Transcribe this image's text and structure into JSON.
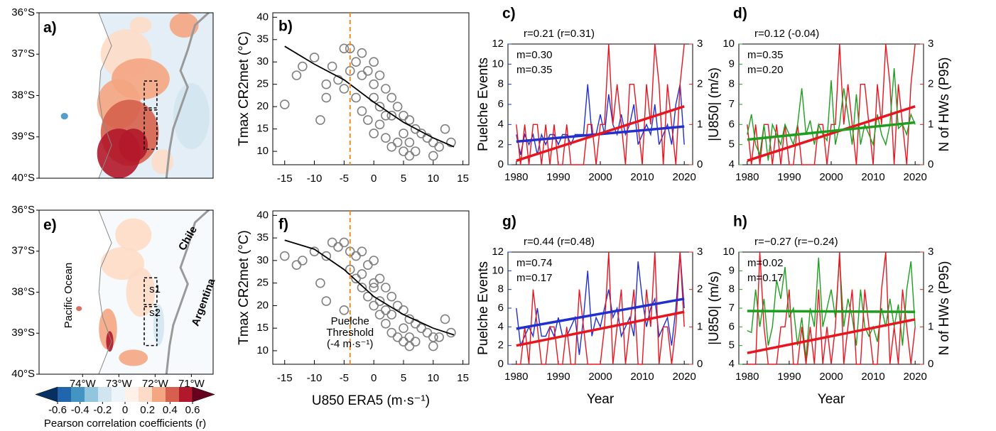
{
  "chart_data": [
    {
      "type": "map",
      "title": "a)",
      "xlim": [
        -75.2,
        -70.4
      ],
      "ylim": [
        -40,
        -36
      ],
      "yticks": [
        {
          "value": -36,
          "label": "36°S"
        },
        {
          "value": -37,
          "label": "37°S"
        },
        {
          "value": -38,
          "label": "38°S"
        },
        {
          "value": -39,
          "label": "39°S"
        },
        {
          "value": -40,
          "label": "40°S"
        }
      ],
      "xticks": [],
      "annotations": []
    },
    {
      "type": "map",
      "title": "e)",
      "xlim": [
        -75.2,
        -70.4
      ],
      "ylim": [
        -40,
        -36
      ],
      "yticks": [
        {
          "value": -36,
          "label": "36°S"
        },
        {
          "value": -37,
          "label": "37°S"
        },
        {
          "value": -38,
          "label": "38°S"
        },
        {
          "value": -39,
          "label": "39°S"
        },
        {
          "value": -40,
          "label": "40°S"
        }
      ],
      "xticks": [
        {
          "value": -74,
          "label": "74°W"
        },
        {
          "value": -73,
          "label": "73°W"
        },
        {
          "value": -72,
          "label": "72°W"
        },
        {
          "value": -71,
          "label": "71°W"
        }
      ],
      "annotations": [
        "Pacific Ocean",
        "Chile",
        "Argentina",
        "s1",
        "s2"
      ]
    },
    {
      "type": "colorbar",
      "xlabel": "Pearson correlation coefficients (r)",
      "xlim": [
        -0.6,
        0.6
      ],
      "xticks": [
        -0.6,
        -0.4,
        -0.2,
        0,
        0.2,
        0.4,
        0.6
      ],
      "colors": [
        "#053061",
        "#2166ac",
        "#4393c3",
        "#92c5de",
        "#d1e5f0",
        "#eef5fa",
        "#fdf1ea",
        "#fddbc7",
        "#f4a582",
        "#d6604d",
        "#b2182b",
        "#67001f"
      ]
    },
    {
      "type": "scatter",
      "title": "b)",
      "ylabel": "Tmax CR2met (°C)",
      "xlim": [
        -17,
        16
      ],
      "ylim": [
        7,
        41
      ],
      "xticks": [
        -15,
        -10,
        -5,
        0,
        5,
        10,
        15
      ],
      "yticks": [
        10,
        15,
        20,
        25,
        30,
        35,
        40
      ],
      "threshold": -4,
      "point_color": "#808080",
      "fit_color": "#000000",
      "threshold_color": "#f08c1e",
      "points": {
        "x": [
          -15,
          -13,
          -12,
          -10,
          -9,
          -8,
          -7,
          -6,
          -5,
          -4,
          -3,
          -3,
          -2,
          -2,
          -1,
          -1,
          0,
          0,
          0,
          1,
          1,
          2,
          2,
          3,
          3,
          4,
          4,
          5,
          5,
          6,
          6,
          7,
          7,
          8,
          9,
          10,
          11,
          12,
          13,
          -5,
          -2,
          1,
          3,
          5,
          -8,
          -4,
          0,
          2,
          6,
          10
        ],
        "y": [
          20.5,
          27,
          29,
          31,
          17,
          25,
          29,
          26,
          33,
          33,
          30,
          22,
          32,
          19,
          28,
          17,
          30,
          22,
          14,
          27,
          16,
          24,
          13,
          22,
          11,
          20,
          12,
          18,
          10,
          17,
          9,
          15,
          10,
          14,
          13,
          12,
          11,
          15,
          12,
          24,
          27,
          20,
          18,
          14,
          22,
          28,
          25,
          18,
          12,
          9
        ]
      },
      "fit": {
        "x": [
          -15,
          -10,
          -5,
          0,
          5,
          10,
          13.5
        ],
        "y": [
          33.5,
          29.5,
          26,
          21,
          16.5,
          13,
          11
        ]
      }
    },
    {
      "type": "scatter",
      "title": "f)",
      "ylabel": "Tmax CR2met (°C)",
      "xlabel": "U850 ERA5 (m·s⁻¹)",
      "xlim": [
        -17,
        16
      ],
      "ylim": [
        7,
        41
      ],
      "xticks": [
        -15,
        -10,
        -5,
        0,
        5,
        10,
        15
      ],
      "yticks": [
        10,
        15,
        20,
        25,
        30,
        35,
        40
      ],
      "threshold": -4,
      "point_color": "#808080",
      "fit_color": "#000000",
      "threshold_color": "#f08c1e",
      "annotation": [
        "Puelche",
        "Threshold",
        "(-4 m·s⁻¹)"
      ],
      "points": {
        "x": [
          -15,
          -13,
          -12,
          -10,
          -9,
          -8,
          -7,
          -6,
          -5,
          -4,
          -3,
          -3,
          -2,
          -2,
          -1,
          -1,
          0,
          0,
          0,
          1,
          1,
          2,
          2,
          3,
          3,
          4,
          4,
          5,
          5,
          6,
          6,
          7,
          7,
          8,
          9,
          10,
          11,
          12,
          13,
          -5,
          -2,
          1,
          3,
          5,
          -8,
          -4,
          0,
          2,
          6,
          10
        ],
        "y": [
          31,
          29,
          30,
          32,
          25,
          31,
          34,
          33,
          34,
          32,
          31,
          26,
          32,
          24,
          29,
          22,
          30,
          24,
          20,
          26,
          18,
          24,
          16,
          22,
          14,
          20,
          13,
          19,
          12,
          17,
          11,
          16,
          12,
          15,
          14,
          13,
          13,
          17,
          14,
          19,
          27,
          21,
          18,
          15,
          21,
          28,
          25,
          19,
          13,
          11
        ]
      },
      "fit": {
        "x": [
          -15,
          -10,
          -5,
          0,
          5,
          10,
          13.5
        ],
        "y": [
          34.5,
          32.5,
          28,
          22,
          18,
          15,
          13.5
        ]
      }
    },
    {
      "type": "line",
      "title": "c)",
      "stat": "r=0.21 (r=0.31)",
      "ylabel": "Puelche Events",
      "xlim": [
        1978,
        2022
      ],
      "xticks": [
        1980,
        1990,
        2000,
        2010,
        2020
      ],
      "ylim": [
        0,
        12
      ],
      "yticks": [
        0,
        2,
        4,
        6,
        8,
        10,
        12
      ],
      "y2lim": [
        0,
        3
      ],
      "y2ticks": [
        0,
        1,
        2,
        3
      ],
      "x": [
        1980,
        1981,
        1982,
        1983,
        1984,
        1985,
        1986,
        1987,
        1988,
        1989,
        1990,
        1991,
        1992,
        1993,
        1994,
        1995,
        1996,
        1997,
        1998,
        1999,
        2000,
        2001,
        2002,
        2003,
        2004,
        2005,
        2006,
        2007,
        2008,
        2009,
        2010,
        2011,
        2012,
        2013,
        2014,
        2015,
        2016,
        2017,
        2018,
        2019,
        2020
      ],
      "series": [
        {
          "color": "#1f2fd0",
          "slope_label": "m=0.30",
          "trend": [
            2.3,
            3.8
          ],
          "values": [
            3,
            1,
            3,
            2,
            3,
            1,
            3,
            2,
            3,
            3,
            2,
            3,
            3,
            2,
            3,
            3,
            3,
            8,
            3,
            3,
            5,
            3,
            7,
            4,
            3,
            5,
            3,
            4,
            6,
            2,
            3,
            4,
            3,
            6,
            2,
            3,
            4,
            2,
            6,
            8,
            2
          ]
        },
        {
          "color": "#e8141e",
          "axis": "y2",
          "slope_label": "m=0.35",
          "trend": [
            0.1,
            1.45
          ],
          "values": [
            1,
            0,
            1,
            0,
            1,
            1,
            0,
            1,
            0,
            1,
            0,
            0,
            1,
            0,
            0,
            0,
            0,
            1,
            1,
            0,
            1,
            1,
            3,
            1,
            2,
            1,
            0,
            2,
            2,
            1,
            0,
            2,
            1,
            3,
            2,
            0,
            2,
            1,
            0,
            2,
            3
          ]
        }
      ]
    },
    {
      "type": "line",
      "title": "d)",
      "stat": "r=0.12 (-0.04)",
      "ylabel": "|U850| (m/s)",
      "y2label": "N of HWs (P95)",
      "xlim": [
        1978,
        2022
      ],
      "xticks": [
        1980,
        1990,
        2000,
        2010,
        2020
      ],
      "ylim": [
        4,
        10
      ],
      "yticks": [
        4,
        5,
        6,
        7,
        8,
        9,
        10
      ],
      "y2lim": [
        0,
        3
      ],
      "y2ticks": [
        0,
        1,
        2,
        3
      ],
      "x": [
        1980,
        1981,
        1982,
        1983,
        1984,
        1985,
        1986,
        1987,
        1988,
        1989,
        1990,
        1991,
        1992,
        1993,
        1994,
        1995,
        1996,
        1997,
        1998,
        1999,
        2000,
        2001,
        2002,
        2003,
        2004,
        2005,
        2006,
        2007,
        2008,
        2009,
        2010,
        2011,
        2012,
        2013,
        2014,
        2015,
        2016,
        2017,
        2018,
        2019,
        2020
      ],
      "series": [
        {
          "color": "#e8141e",
          "axis": "y2",
          "slope_label": "m=0.35",
          "trend": [
            0.1,
            1.45
          ],
          "values": [
            1,
            0,
            1,
            0,
            1,
            1,
            0,
            1,
            0,
            1,
            0,
            0,
            1,
            0,
            0,
            0,
            0,
            1,
            1,
            0,
            1,
            1,
            3,
            1,
            2,
            1,
            0,
            2,
            2,
            1,
            0,
            2,
            1,
            3,
            2,
            0,
            2,
            1,
            0,
            2,
            3
          ]
        },
        {
          "color": "#1e9e1e",
          "slope_label": "m=0.20",
          "trend": [
            5.25,
            6.1
          ],
          "values": [
            5.5,
            6.5,
            5,
            4.5,
            6,
            4.2,
            6,
            5.5,
            5,
            6,
            5.5,
            5,
            6,
            7.8,
            5.5,
            6.2,
            5,
            6,
            5.5,
            5.2,
            8.2,
            5,
            6,
            7.8,
            6.5,
            5,
            7.5,
            5,
            6,
            5.5,
            5,
            6.5,
            5.5,
            5,
            6,
            8.8,
            5.8,
            6,
            5.5,
            6.5,
            6
          ]
        }
      ]
    },
    {
      "type": "line",
      "title": "g)",
      "stat": "r=0.44 (r=0.48)",
      "ylabel": "Puelche Events",
      "xlabel": "Year",
      "xlim": [
        1978,
        2022
      ],
      "xticks": [
        1980,
        1990,
        2000,
        2010,
        2020
      ],
      "ylim": [
        0,
        12
      ],
      "yticks": [
        0,
        2,
        4,
        6,
        8,
        10,
        12
      ],
      "y2lim": [
        0,
        3
      ],
      "y2ticks": [
        0,
        1,
        2,
        3
      ],
      "x": [
        1980,
        1981,
        1982,
        1983,
        1984,
        1985,
        1986,
        1987,
        1988,
        1989,
        1990,
        1991,
        1992,
        1993,
        1994,
        1995,
        1996,
        1997,
        1998,
        1999,
        2000,
        2001,
        2002,
        2003,
        2004,
        2005,
        2006,
        2007,
        2008,
        2009,
        2010,
        2011,
        2012,
        2013,
        2014,
        2015,
        2016,
        2017,
        2018,
        2019,
        2020
      ],
      "series": [
        {
          "color": "#1f2fd0",
          "slope_label": "m=0.74",
          "trend": [
            3.8,
            7.0
          ],
          "values": [
            6,
            2,
            3,
            4,
            3,
            6,
            3,
            3,
            4,
            3,
            5,
            3,
            3,
            4,
            5,
            1,
            5,
            10,
            3,
            5,
            4,
            6,
            8,
            5,
            6,
            3,
            4,
            5,
            3,
            11,
            7,
            4,
            6,
            7,
            3,
            4,
            5,
            2,
            6,
            12,
            6
          ]
        },
        {
          "color": "#e8141e",
          "axis": "y2",
          "slope_label": "m=0.17",
          "trend": [
            0.5,
            1.4
          ],
          "values": [
            0,
            0,
            1,
            0,
            2,
            1,
            0,
            0,
            1,
            1,
            0,
            0,
            1,
            0,
            0,
            2,
            1,
            0,
            0,
            0,
            0,
            1,
            3,
            0,
            1,
            2,
            0,
            1,
            2,
            0,
            0,
            2,
            1,
            3,
            0,
            1,
            1,
            0,
            1,
            3,
            1
          ]
        }
      ]
    },
    {
      "type": "line",
      "title": "h)",
      "stat": "r=−0.27 (r=−0.24)",
      "ylabel": "|U850| (m/s)",
      "y2label": "N of HWs (P95)",
      "xlabel": "Year",
      "xlim": [
        1978,
        2022
      ],
      "xticks": [
        1980,
        1990,
        2000,
        2010,
        2020
      ],
      "ylim": [
        4,
        10
      ],
      "yticks": [
        4,
        5,
        6,
        7,
        8,
        9,
        10
      ],
      "y2lim": [
        0,
        3
      ],
      "y2ticks": [
        0,
        1,
        2,
        3
      ],
      "x": [
        1980,
        1981,
        1982,
        1983,
        1984,
        1985,
        1986,
        1987,
        1988,
        1989,
        1990,
        1991,
        1992,
        1993,
        1994,
        1995,
        1996,
        1997,
        1998,
        1999,
        2000,
        2001,
        2002,
        2003,
        2004,
        2005,
        2006,
        2007,
        2008,
        2009,
        2010,
        2011,
        2012,
        2013,
        2014,
        2015,
        2016,
        2017,
        2018,
        2019,
        2020
      ],
      "series": [
        {
          "color": "#1e9e1e",
          "slope_label": "m=0.02",
          "trend": [
            6.85,
            6.8
          ],
          "values": [
            5.8,
            5.7,
            8,
            6,
            7.5,
            5,
            6,
            8.5,
            7.5,
            9.2,
            6.5,
            7,
            5,
            6.5,
            4.3,
            7,
            6,
            9.7,
            6,
            7,
            8,
            6.5,
            9.7,
            6,
            7.5,
            6.5,
            5,
            8,
            6,
            5.5,
            6,
            5.2,
            7,
            6,
            7.5,
            6,
            7.2,
            5,
            8,
            9.5,
            6
          ]
        },
        {
          "color": "#e8141e",
          "axis": "y2",
          "slope_label": "m=0.17",
          "trend": [
            0.3,
            1.2
          ],
          "values": [
            0,
            0,
            0,
            3,
            1,
            0,
            0,
            0,
            1,
            1,
            2,
            0,
            0,
            1,
            0,
            1,
            0,
            2,
            0,
            1,
            0,
            1,
            3,
            0,
            1,
            2,
            0,
            0,
            2,
            1,
            0,
            0,
            2,
            3,
            0,
            1,
            0,
            2,
            1,
            0,
            1
          ]
        }
      ]
    }
  ]
}
